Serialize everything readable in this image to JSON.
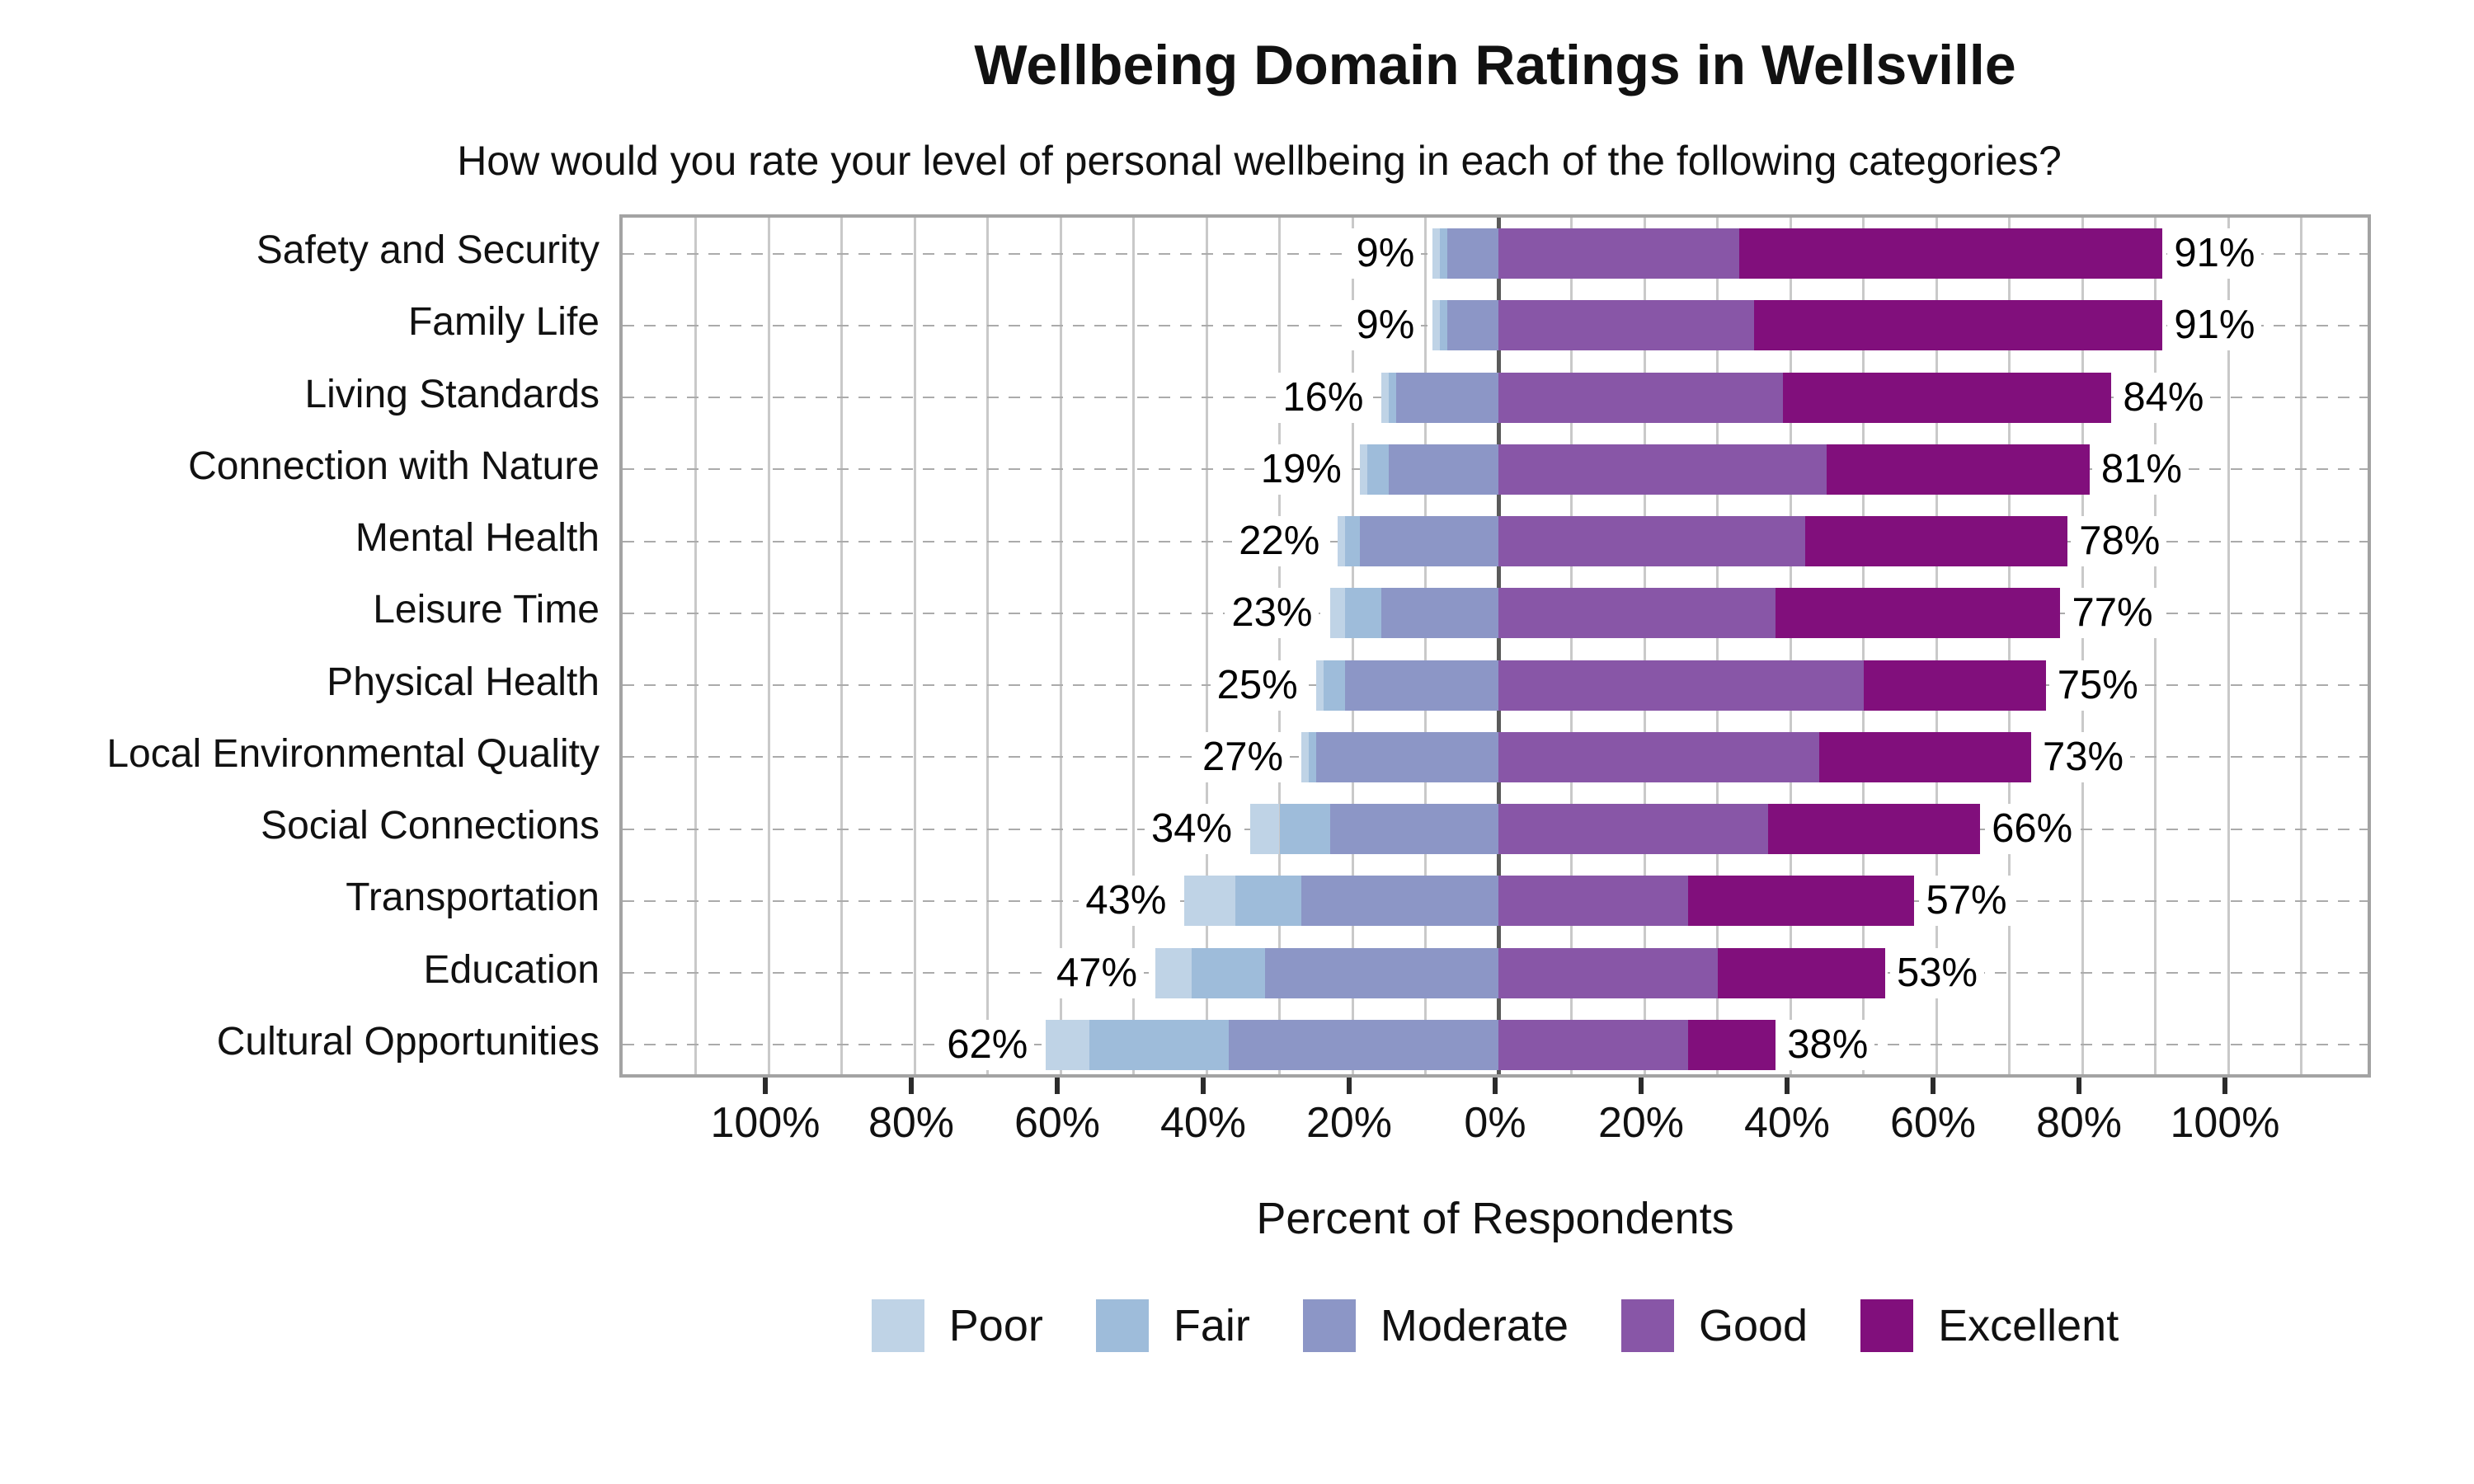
{
  "chart_data": {
    "type": "diverging_stacked_bar",
    "title": "Wellbeing Domain Ratings in Wellsville",
    "subtitle": "How would you rate your level of personal wellbeing in each of the following categories?",
    "xlabel": "Percent of Respondents",
    "x_axis": {
      "min": -120,
      "max": 120,
      "gridline_step": 10,
      "ticks": [
        {
          "value": -100,
          "label": "100%"
        },
        {
          "value": -80,
          "label": "80%"
        },
        {
          "value": -60,
          "label": "60%"
        },
        {
          "value": -40,
          "label": "40%"
        },
        {
          "value": -20,
          "label": "20%"
        },
        {
          "value": 0,
          "label": "0%"
        },
        {
          "value": 20,
          "label": "20%"
        },
        {
          "value": 40,
          "label": "40%"
        },
        {
          "value": 60,
          "label": "60%"
        },
        {
          "value": 80,
          "label": "80%"
        },
        {
          "value": 100,
          "label": "100%"
        }
      ]
    },
    "legend_position": "bottom",
    "grid": true,
    "series": [
      {
        "key": "poor",
        "label": "Poor",
        "color": "#bfd3e6",
        "side": "left"
      },
      {
        "key": "fair",
        "label": "Fair",
        "color": "#9ebcda",
        "side": "left"
      },
      {
        "key": "moderate",
        "label": "Moderate",
        "color": "#8c96c6",
        "side": "left"
      },
      {
        "key": "good",
        "label": "Good",
        "color": "#8856a7",
        "side": "right"
      },
      {
        "key": "excellent",
        "label": "Excellent",
        "color": "#810f7c",
        "side": "right"
      }
    ],
    "rows": [
      {
        "category": "Safety and Security",
        "values": {
          "poor": 1,
          "fair": 1,
          "moderate": 7,
          "good": 33,
          "excellent": 58
        },
        "left_total_label": "9%",
        "right_total_label": "91%"
      },
      {
        "category": "Family Life",
        "values": {
          "poor": 1,
          "fair": 1,
          "moderate": 7,
          "good": 35,
          "excellent": 56
        },
        "left_total_label": "9%",
        "right_total_label": "91%"
      },
      {
        "category": "Living Standards",
        "values": {
          "poor": 1,
          "fair": 1,
          "moderate": 14,
          "good": 39,
          "excellent": 45
        },
        "left_total_label": "16%",
        "right_total_label": "84%"
      },
      {
        "category": "Connection with Nature",
        "values": {
          "poor": 1,
          "fair": 3,
          "moderate": 15,
          "good": 45,
          "excellent": 36
        },
        "left_total_label": "19%",
        "right_total_label": "81%"
      },
      {
        "category": "Mental Health",
        "values": {
          "poor": 1,
          "fair": 2,
          "moderate": 19,
          "good": 42,
          "excellent": 36
        },
        "left_total_label": "22%",
        "right_total_label": "78%"
      },
      {
        "category": "Leisure Time",
        "values": {
          "poor": 2,
          "fair": 5,
          "moderate": 16,
          "good": 38,
          "excellent": 39
        },
        "left_total_label": "23%",
        "right_total_label": "77%"
      },
      {
        "category": "Physical Health",
        "values": {
          "poor": 1,
          "fair": 3,
          "moderate": 21,
          "good": 50,
          "excellent": 25
        },
        "left_total_label": "25%",
        "right_total_label": "75%"
      },
      {
        "category": "Local Environmental Quality",
        "values": {
          "poor": 1,
          "fair": 1,
          "moderate": 25,
          "good": 44,
          "excellent": 29
        },
        "left_total_label": "27%",
        "right_total_label": "73%"
      },
      {
        "category": "Social Connections",
        "values": {
          "poor": 4,
          "fair": 7,
          "moderate": 23,
          "good": 37,
          "excellent": 29
        },
        "left_total_label": "34%",
        "right_total_label": "66%"
      },
      {
        "category": "Transportation",
        "values": {
          "poor": 7,
          "fair": 9,
          "moderate": 27,
          "good": 26,
          "excellent": 31
        },
        "left_total_label": "43%",
        "right_total_label": "57%"
      },
      {
        "category": "Education",
        "values": {
          "poor": 5,
          "fair": 10,
          "moderate": 32,
          "good": 30,
          "excellent": 23
        },
        "left_total_label": "47%",
        "right_total_label": "53%"
      },
      {
        "category": "Cultural Opportunities",
        "values": {
          "poor": 6,
          "fair": 19,
          "moderate": 37,
          "good": 26,
          "excellent": 12
        },
        "left_total_label": "62%",
        "right_total_label": "38%"
      }
    ]
  }
}
